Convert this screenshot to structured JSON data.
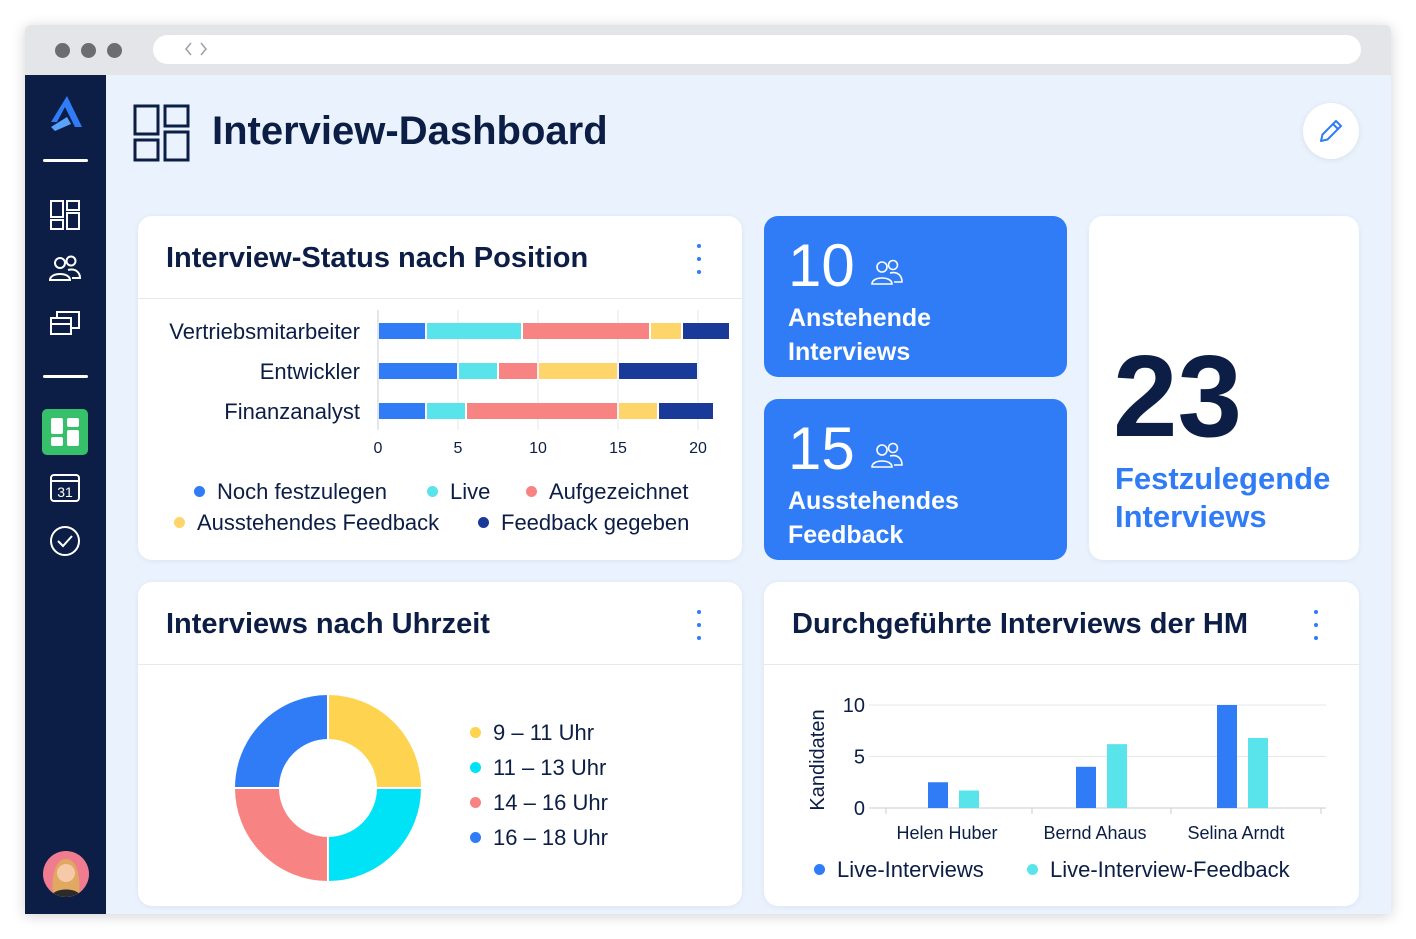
{
  "page": {
    "title": "Interview-Dashboard"
  },
  "colors": {
    "sidebar_bg": "#0c1e45",
    "accent_blue": "#2f7cf6",
    "bg": "#e9f2fd",
    "noch_festzulegen": "#2f7cf6",
    "live": "#59e4ec",
    "aufgezeichnet": "#f88383",
    "ausstehendes_feedback": "#fed56a",
    "feedback_gegeben": "#1a3a9a"
  },
  "sidebar": {
    "items": [
      {
        "icon": "dashboard-grid-icon"
      },
      {
        "icon": "users-icon"
      },
      {
        "icon": "positions-icon"
      },
      {
        "icon": "active-dashboard-icon",
        "active": true
      },
      {
        "icon": "calendar-icon",
        "label": "31"
      },
      {
        "icon": "check-circle-icon"
      }
    ]
  },
  "status_card": {
    "title": "Interview-Status nach Position",
    "chart_data": {
      "type": "bar",
      "orientation": "horizontal",
      "stacked": true,
      "categories": [
        "Vertriebsmitarbeiter",
        "Entwickler",
        "Finanzanalyst"
      ],
      "series": [
        {
          "name": "Noch festzulegen",
          "values": [
            3,
            5,
            3
          ]
        },
        {
          "name": "Live",
          "values": [
            6,
            2.5,
            2.5
          ]
        },
        {
          "name": "Aufgezeichnet",
          "values": [
            8,
            2.5,
            9.5
          ]
        },
        {
          "name": "Ausstehendes Feedback",
          "values": [
            2,
            5,
            2.5
          ]
        },
        {
          "name": "Feedback gegeben",
          "values": [
            3,
            5,
            3.5
          ]
        }
      ],
      "xlim": [
        0,
        22
      ],
      "xticks": [
        "0",
        "5",
        "10",
        "15",
        "20"
      ],
      "legend": "bottom"
    }
  },
  "kpi_pending_interviews": {
    "value": "10",
    "label_line1": "Anstehende",
    "label_line2": "Interviews"
  },
  "kpi_pending_feedback": {
    "value": "15",
    "label_line1": "Ausstehendes",
    "label_line2": "Feedback"
  },
  "kpi_to_schedule": {
    "value": "23",
    "label_line1": "Festzulegende",
    "label_line2": "Interviews"
  },
  "time_card": {
    "title": "Interviews nach Uhrzeit",
    "chart_data": {
      "type": "pie",
      "donut": true,
      "categories": [
        "9 – 11 Uhr",
        "11 – 13 Uhr",
        "14 – 16 Uhr",
        "16 – 18 Uhr"
      ],
      "values": [
        25,
        25,
        25,
        25
      ],
      "colors": [
        "#fed34f",
        "#00e2f6",
        "#f88383",
        "#2f7cf6"
      ],
      "legend": "right"
    }
  },
  "hm_card": {
    "title": "Durchgeführte Interviews der HM",
    "chart_data": {
      "type": "bar",
      "categories": [
        "Helen Huber",
        "Bernd Ahaus",
        "Selina Arndt"
      ],
      "series": [
        {
          "name": "Live-Interviews",
          "values": [
            2.5,
            4,
            10
          ]
        },
        {
          "name": "Live-Interview-Feedback",
          "values": [
            1.7,
            6.2,
            6.8
          ]
        }
      ],
      "ylabel": "Kandidaten",
      "ylim": [
        0,
        10
      ],
      "yticks": [
        "0",
        "5",
        "10"
      ],
      "legend": "bottom"
    }
  }
}
